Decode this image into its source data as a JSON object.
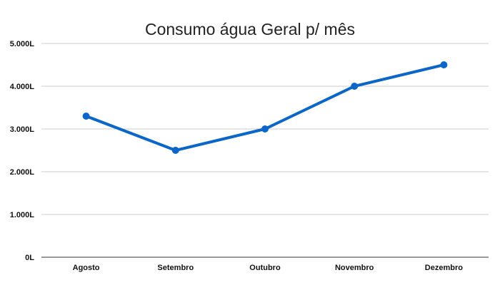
{
  "chart_data": {
    "type": "line",
    "title": "Consumo água Geral p/ mês",
    "xlabel": "",
    "ylabel": "",
    "categories": [
      "Agosto",
      "Setembro",
      "Outubro",
      "Novembro",
      "Dezembro"
    ],
    "series": [
      {
        "values": [
          3300,
          2500,
          3000,
          4000,
          4500
        ],
        "color": "#0b66c8"
      }
    ],
    "ylim": [
      0,
      5000
    ],
    "yticks": [
      0,
      1000,
      2000,
      3000,
      4000,
      5000
    ],
    "ytick_labels": [
      "0L",
      "1.000L",
      "2.000L",
      "3.000L",
      "4.000L",
      "5.000L"
    ],
    "grid": true,
    "legend": "none",
    "markers": true
  }
}
